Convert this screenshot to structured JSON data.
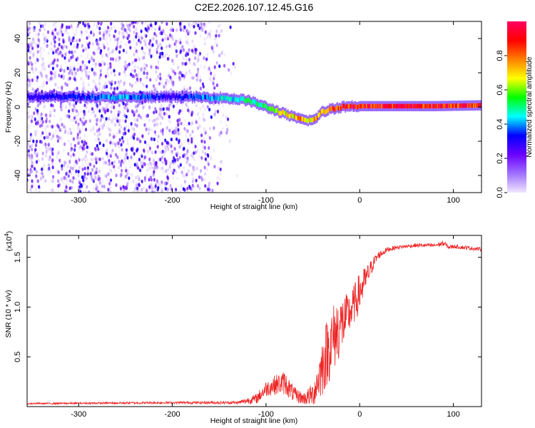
{
  "figure": {
    "title": "C2E2.2026.107.12.45.G16"
  },
  "chart_data": [
    {
      "type": "heatmap",
      "name": "spectrogram",
      "xlabel": "Height of straight line (km)",
      "ylabel": "Frequency (Hz)",
      "xlim": [
        -355,
        130
      ],
      "ylim": [
        -50,
        50
      ],
      "x_ticks": [
        -300,
        -200,
        -100,
        0,
        100
      ],
      "x_tick_labels": [
        "-300",
        "-200",
        "-100",
        "0",
        "100"
      ],
      "y_ticks": [
        -40,
        -20,
        0,
        20,
        40
      ],
      "y_tick_labels": [
        "-40",
        "-20",
        "0",
        "20",
        "40"
      ],
      "colorbar": {
        "label": "Normalized spectral amplitude",
        "range": [
          0,
          1
        ],
        "ticks": [
          0.0,
          0.2,
          0.4,
          0.6,
          0.8
        ],
        "tick_labels": [
          "0.0",
          "0.2",
          "0.4",
          "0.6",
          "0.8"
        ],
        "colors": [
          "#f2e6ff",
          "#a070ff",
          "#6a00ff",
          "#0000ff",
          "#00ffff",
          "#00ff00",
          "#ffff00",
          "#ff8000",
          "#ff0000",
          "#ff0060"
        ]
      },
      "noise_region_x": [
        -355,
        -130
      ],
      "ridge": {
        "x": [
          -355,
          -300,
          -260,
          -200,
          -150,
          -120,
          -100,
          -80,
          -65,
          -50,
          -40,
          -30,
          -20,
          -10,
          0,
          40,
          80,
          130
        ],
        "freq": [
          6,
          6,
          5.5,
          6,
          5.5,
          4,
          0,
          -4,
          -7,
          -8,
          -3,
          -1,
          0,
          0.5,
          0.5,
          0.5,
          0.5,
          1
        ],
        "amplitude": [
          0.3,
          0.35,
          0.45,
          0.3,
          0.45,
          0.5,
          0.55,
          0.7,
          0.8,
          0.75,
          0.8,
          0.85,
          0.9,
          0.95,
          0.95,
          0.95,
          0.95,
          0.9
        ]
      }
    },
    {
      "type": "line",
      "name": "snr",
      "xlabel": "Height of straight line (km)",
      "ylabel": "SNR (10 * v/v)",
      "scale_label": "(x10",
      "scale_exponent": "4",
      "scale_close": ")",
      "xlim": [
        -355,
        130
      ],
      "ylim": [
        0,
        1.72
      ],
      "x_ticks": [
        -300,
        -200,
        -100,
        0,
        100
      ],
      "x_tick_labels": [
        "-300",
        "-200",
        "-100",
        "0",
        "100"
      ],
      "y_ticks": [
        0.5,
        1.0,
        1.5
      ],
      "y_tick_labels": [
        "0.5",
        "1.0",
        "1.5"
      ],
      "color": "#ee2222",
      "envelope": {
        "x": [
          -355,
          -200,
          -130,
          -110,
          -100,
          -90,
          -80,
          -70,
          -60,
          -50,
          -45,
          -40,
          -35,
          -30,
          -25,
          -20,
          -15,
          -10,
          -5,
          0,
          5,
          10,
          15,
          20,
          30,
          40,
          60,
          80,
          90,
          95,
          100,
          110,
          120,
          130
        ],
        "mean": [
          0.03,
          0.04,
          0.04,
          0.08,
          0.18,
          0.22,
          0.24,
          0.12,
          0.08,
          0.12,
          0.25,
          0.4,
          0.55,
          0.65,
          0.75,
          0.82,
          0.88,
          0.95,
          1.05,
          1.15,
          1.25,
          1.35,
          1.45,
          1.52,
          1.58,
          1.6,
          1.62,
          1.62,
          1.64,
          1.6,
          1.61,
          1.6,
          1.59,
          1.58
        ],
        "spread": [
          0.008,
          0.012,
          0.015,
          0.05,
          0.08,
          0.1,
          0.12,
          0.08,
          0.06,
          0.12,
          0.2,
          0.3,
          0.35,
          0.35,
          0.35,
          0.3,
          0.25,
          0.2,
          0.2,
          0.2,
          0.15,
          0.1,
          0.06,
          0.04,
          0.025,
          0.02,
          0.02,
          0.02,
          0.03,
          0.02,
          0.02,
          0.02,
          0.02,
          0.02
        ]
      }
    }
  ]
}
